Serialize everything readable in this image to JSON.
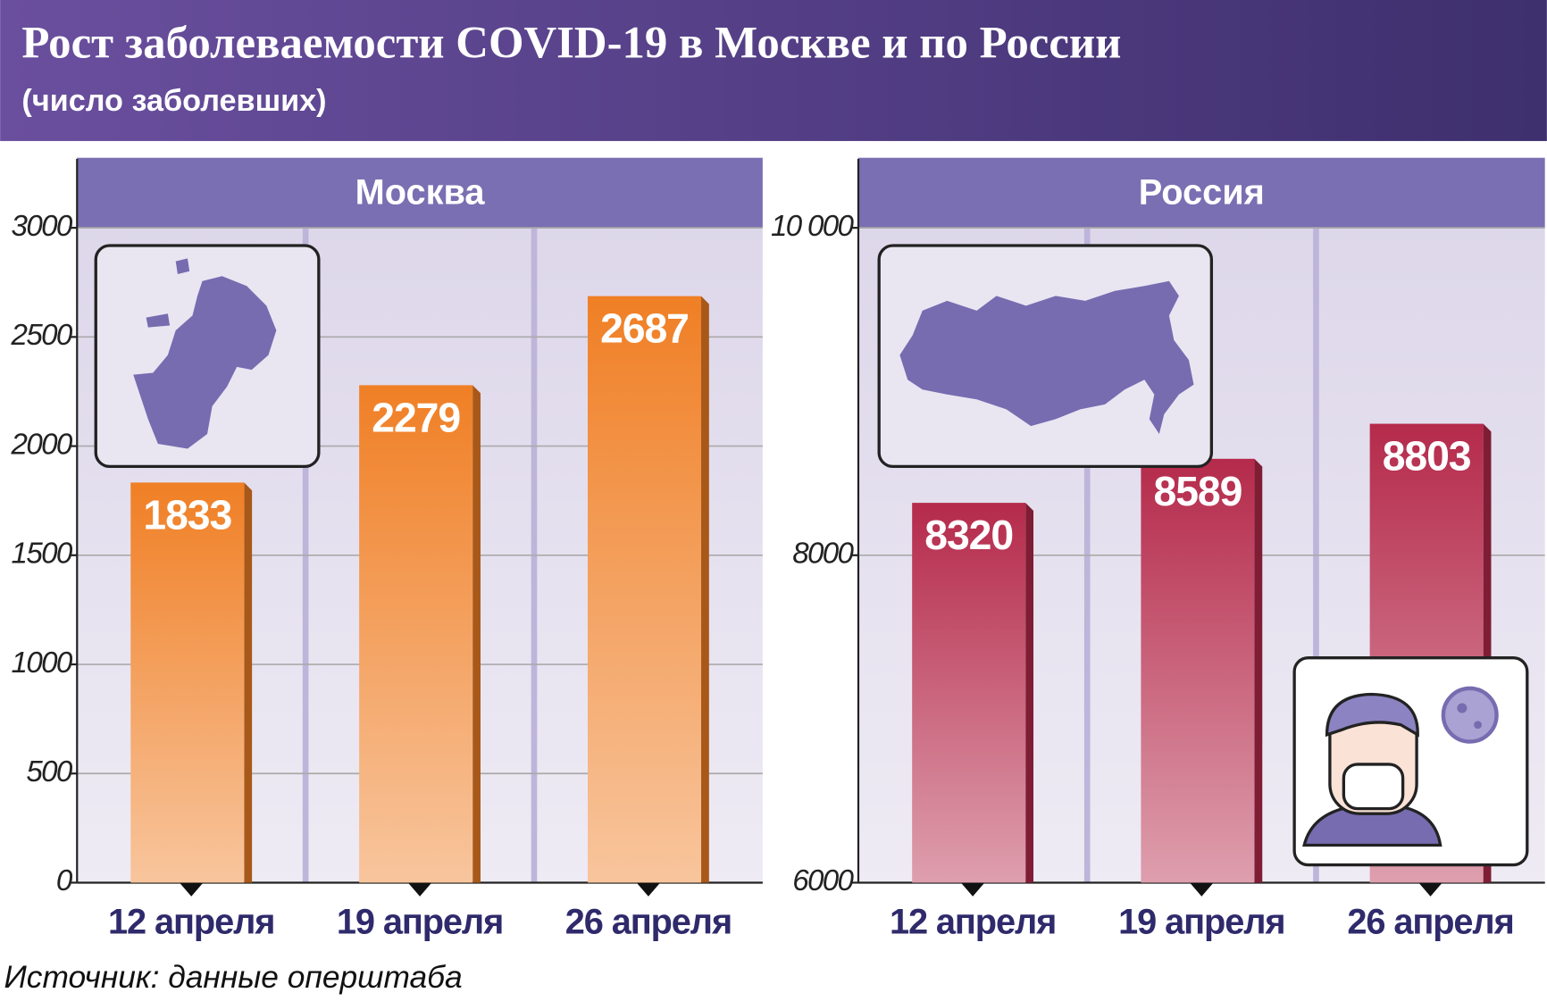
{
  "title": "Рост заболеваемости COVID-19 в Москве и по России",
  "subtitle": "(число заболевших)",
  "source": "Источник: данные оперштаба",
  "chart_data": [
    {
      "type": "bar",
      "title": "Москва",
      "categories": [
        "12 апреля",
        "19 апреля",
        "26 апреля"
      ],
      "values": [
        1833,
        2279,
        2687
      ],
      "color": "#f07f25",
      "ylim": [
        0,
        3000
      ],
      "yticks": [
        0,
        500,
        1000,
        1500,
        2000,
        2500,
        3000
      ],
      "grid": true
    },
    {
      "type": "bar",
      "title": "Россия",
      "categories": [
        "12 апреля",
        "19 апреля",
        "26 апреля"
      ],
      "values": [
        8320,
        8589,
        8803
      ],
      "color": "#b52a4b",
      "ylim": [
        6000,
        10000
      ],
      "yticks": [
        6000,
        8000,
        {
          "value": 10000,
          "label": "10 000"
        }
      ],
      "grid": true
    }
  ]
}
